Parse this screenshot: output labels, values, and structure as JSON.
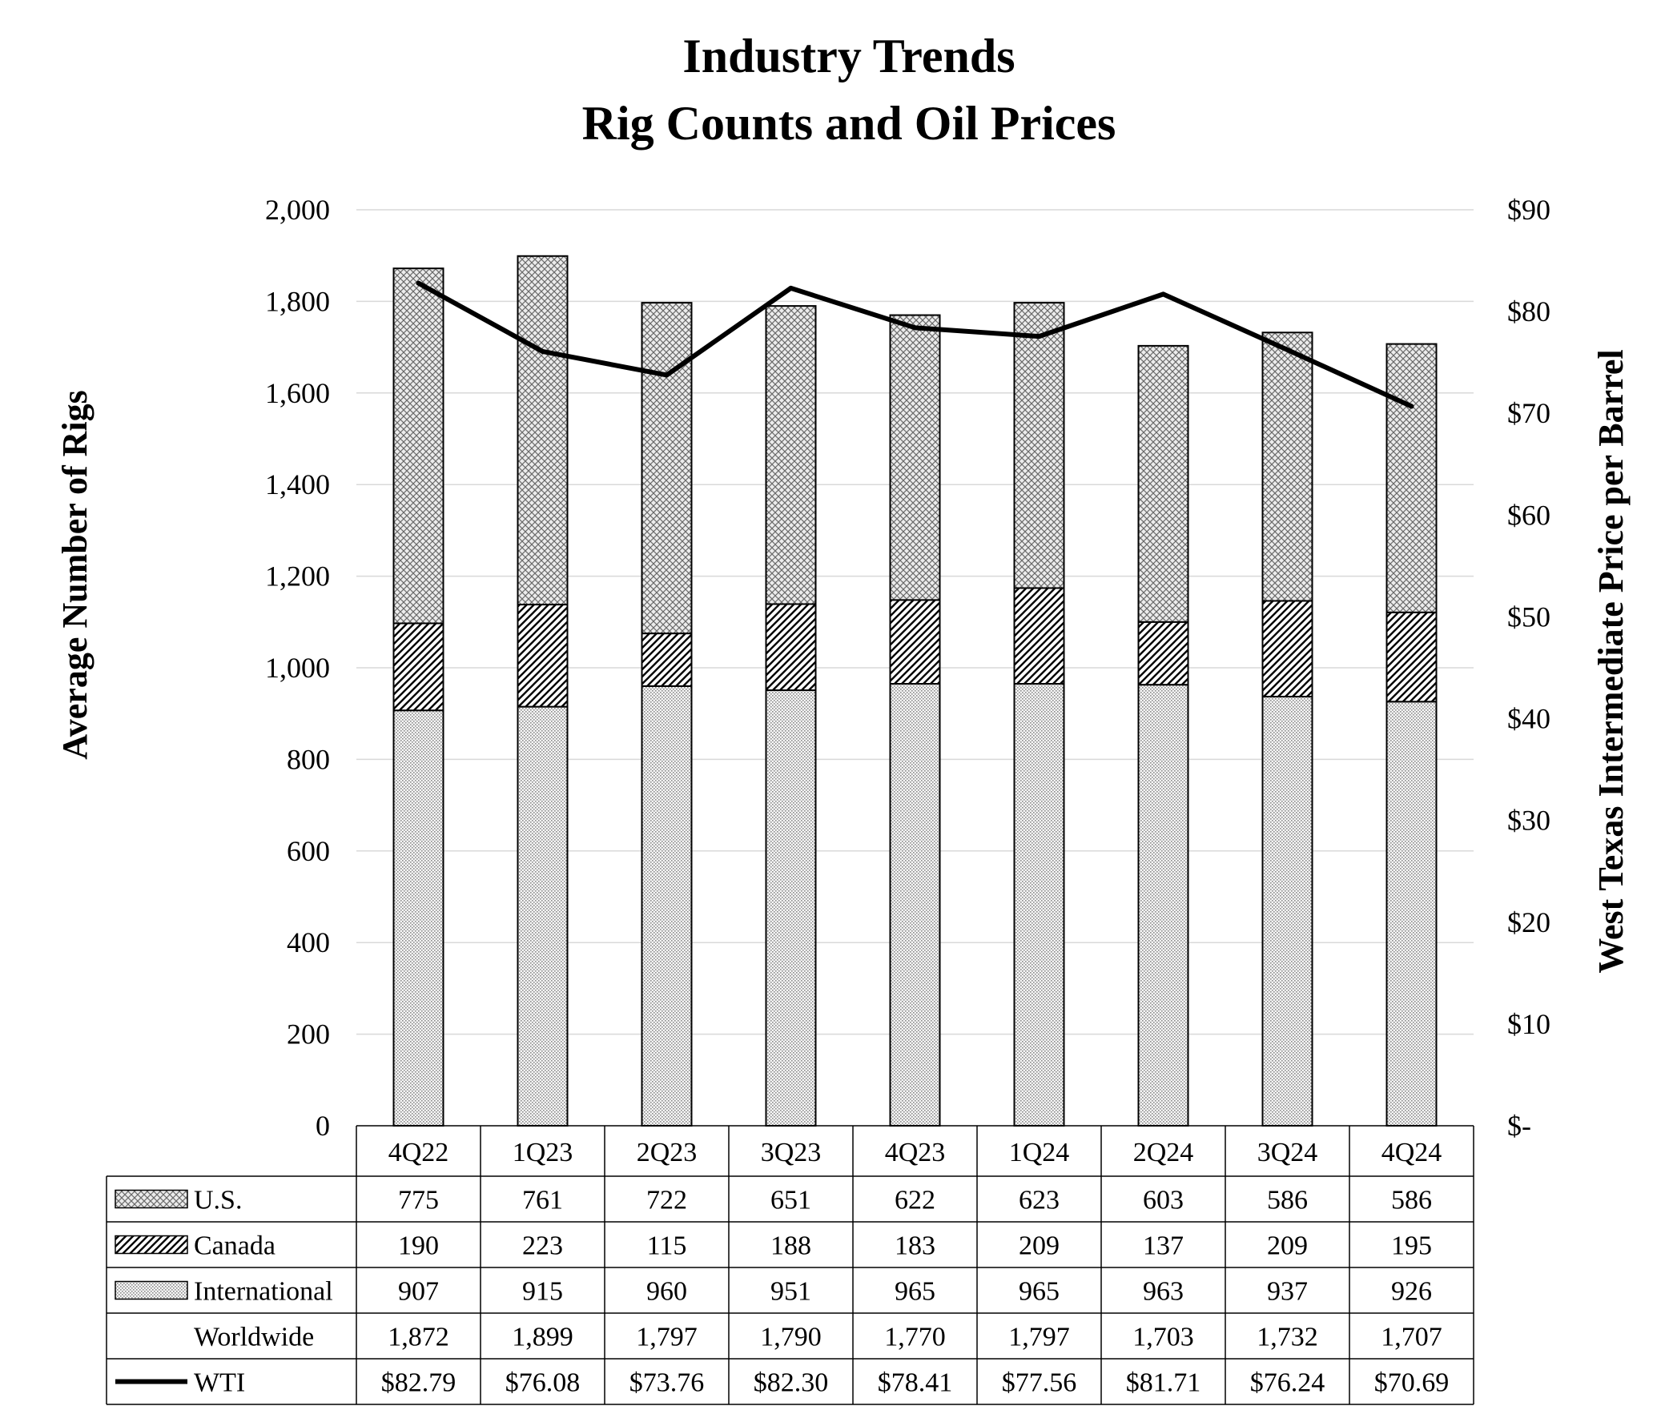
{
  "chart_data": {
    "type": "bar",
    "stacked": true,
    "title": "Industry Trends",
    "subtitle": "Rig Counts and Oil Prices",
    "ylabel": "Average Number of Rigs",
    "y2label": "West Texas Intermediate Price per Barrel",
    "ylim": [
      0,
      2000
    ],
    "y2lim": [
      0,
      90
    ],
    "yticks": [
      "0",
      "200",
      "400",
      "600",
      "800",
      "1,000",
      "1,200",
      "1,400",
      "1,600",
      "1,800",
      "2,000"
    ],
    "y2ticks": [
      "$-",
      "$10",
      "$20",
      "$30",
      "$40",
      "$50",
      "$60",
      "$70",
      "$80",
      "$90"
    ],
    "categories": [
      "4Q22",
      "1Q23",
      "2Q23",
      "3Q23",
      "4Q23",
      "1Q24",
      "2Q24",
      "3Q24",
      "4Q24"
    ],
    "series": [
      {
        "name": "U.S.",
        "pattern": "crosshatch",
        "values": [
          775,
          761,
          722,
          651,
          622,
          623,
          603,
          586,
          586
        ],
        "labels": [
          "775",
          "761",
          "722",
          "651",
          "622",
          "623",
          "603",
          "586",
          "586"
        ]
      },
      {
        "name": "Canada",
        "pattern": "diagonal",
        "values": [
          190,
          223,
          115,
          188,
          183,
          209,
          137,
          209,
          195
        ],
        "labels": [
          "190",
          "223",
          "115",
          "188",
          "183",
          "209",
          "137",
          "209",
          "195"
        ]
      },
      {
        "name": "International",
        "pattern": "dots",
        "values": [
          907,
          915,
          960,
          951,
          965,
          965,
          963,
          937,
          926
        ],
        "labels": [
          "907",
          "915",
          "960",
          "951",
          "965",
          "965",
          "963",
          "937",
          "926"
        ]
      }
    ],
    "worldwide": {
      "name": "Worldwide",
      "labels": [
        "1,872",
        "1,899",
        "1,797",
        "1,790",
        "1,770",
        "1,797",
        "1,703",
        "1,732",
        "1,707"
      ]
    },
    "line": {
      "name": "WTI",
      "axis": "right",
      "color": "#000000",
      "values": [
        82.79,
        76.08,
        73.76,
        82.3,
        78.41,
        77.56,
        81.71,
        76.24,
        70.69
      ],
      "labels": [
        "$82.79",
        "$76.08",
        "$73.76",
        "$82.30",
        "$78.41",
        "$77.56",
        "$81.71",
        "$76.24",
        "$70.69"
      ]
    },
    "grid": true,
    "legend": "data-table"
  }
}
